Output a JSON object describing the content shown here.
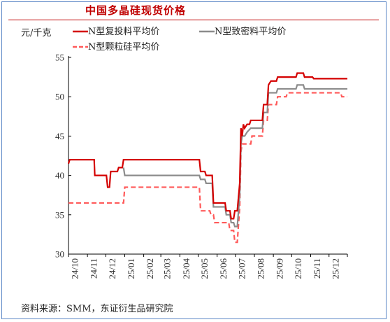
{
  "page_title": "中国多晶硅现货价格",
  "unit_label": "元/千克",
  "source": "资料来源：SMM，东证衍生品研究院",
  "colors": {
    "frame": "#5b86c6",
    "title": "#c00000",
    "series_fuhe": "#d40000",
    "series_zhimi": "#8c8c8c",
    "series_keli": "#ff5a5a"
  },
  "chart_data": {
    "type": "line",
    "title": "",
    "xlabel": "",
    "ylabel": "元/千克",
    "ylim": [
      30,
      55
    ],
    "yticks": [
      30,
      35,
      40,
      45,
      50,
      55
    ],
    "xlim": [
      "2024-10-01",
      "2025-12-31"
    ],
    "xticks": [
      {
        "date": "2024-10-01",
        "label": "24/10"
      },
      {
        "date": "2024-11-01",
        "label": "24/11"
      },
      {
        "date": "2024-12-01",
        "label": "24/12"
      },
      {
        "date": "2025-01-01",
        "label": "25/01"
      },
      {
        "date": "2025-02-01",
        "label": "25/02"
      },
      {
        "date": "2025-03-01",
        "label": "25/03"
      },
      {
        "date": "2025-04-01",
        "label": "25/04"
      },
      {
        "date": "2025-05-01",
        "label": "25/05"
      },
      {
        "date": "2025-06-01",
        "label": "25/06"
      },
      {
        "date": "2025-07-01",
        "label": "25/07"
      },
      {
        "date": "2025-08-01",
        "label": "25/08"
      },
      {
        "date": "2025-09-01",
        "label": "25/09"
      },
      {
        "date": "2025-10-01",
        "label": "25/10"
      },
      {
        "date": "2025-11-01",
        "label": "25/11"
      },
      {
        "date": "2025-12-01",
        "label": "25/12"
      }
    ],
    "grid": false,
    "legend_position": "top",
    "series": [
      {
        "name": "N型复投料平均价",
        "style": "solid",
        "color": "#d40000",
        "points": [
          [
            "2024-10-01",
            41.5
          ],
          [
            "2024-10-03",
            42
          ],
          [
            "2024-11-12",
            42
          ],
          [
            "2024-11-13",
            40
          ],
          [
            "2024-12-02",
            40
          ],
          [
            "2024-12-04",
            38.5
          ],
          [
            "2024-12-07",
            38.5
          ],
          [
            "2024-12-09",
            40.5
          ],
          [
            "2024-12-20",
            40.5
          ],
          [
            "2024-12-22",
            41
          ],
          [
            "2024-12-28",
            41
          ],
          [
            "2024-12-30",
            42
          ],
          [
            "2025-05-03",
            42
          ],
          [
            "2025-05-05",
            40.5
          ],
          [
            "2025-05-12",
            40.5
          ],
          [
            "2025-05-14",
            40
          ],
          [
            "2025-05-24",
            40
          ],
          [
            "2025-05-26",
            36.5
          ],
          [
            "2025-06-14",
            36.5
          ],
          [
            "2025-06-16",
            35.5
          ],
          [
            "2025-06-22",
            35.5
          ],
          [
            "2025-06-24",
            34.5
          ],
          [
            "2025-06-28",
            34.5
          ],
          [
            "2025-06-30",
            35.5
          ],
          [
            "2025-07-04",
            35.5
          ],
          [
            "2025-07-08",
            39
          ],
          [
            "2025-07-10",
            46
          ],
          [
            "2025-07-12",
            45
          ],
          [
            "2025-07-14",
            46.5
          ],
          [
            "2025-07-16",
            46
          ],
          [
            "2025-07-20",
            46.5
          ],
          [
            "2025-07-24",
            46.5
          ],
          [
            "2025-07-26",
            47
          ],
          [
            "2025-08-14",
            47
          ],
          [
            "2025-08-16",
            49
          ],
          [
            "2025-08-22",
            49
          ],
          [
            "2025-08-24",
            51.5
          ],
          [
            "2025-08-28",
            52
          ],
          [
            "2025-09-06",
            52
          ],
          [
            "2025-09-08",
            52.5
          ],
          [
            "2025-10-08",
            52.5
          ],
          [
            "2025-10-10",
            53
          ],
          [
            "2025-10-20",
            53
          ],
          [
            "2025-10-22",
            52.5
          ],
          [
            "2025-11-04",
            52.5
          ],
          [
            "2025-11-06",
            52.3
          ],
          [
            "2025-12-31",
            52.3
          ]
        ]
      },
      {
        "name": "N型致密料平均价",
        "style": "solid",
        "color": "#8c8c8c",
        "points": [
          [
            "2024-12-30",
            41
          ],
          [
            "2025-01-01",
            40
          ],
          [
            "2025-05-03",
            40
          ],
          [
            "2025-05-05",
            39.5
          ],
          [
            "2025-05-12",
            39.5
          ],
          [
            "2025-05-14",
            39
          ],
          [
            "2025-05-24",
            39
          ],
          [
            "2025-05-26",
            36
          ],
          [
            "2025-06-14",
            36
          ],
          [
            "2025-06-16",
            35
          ],
          [
            "2025-06-22",
            35
          ],
          [
            "2025-06-24",
            34
          ],
          [
            "2025-06-28",
            34
          ],
          [
            "2025-06-30",
            33.5
          ],
          [
            "2025-07-04",
            33.5
          ],
          [
            "2025-07-08",
            37.5
          ],
          [
            "2025-07-10",
            44
          ],
          [
            "2025-07-12",
            45
          ],
          [
            "2025-07-16",
            45
          ],
          [
            "2025-07-20",
            45.5
          ],
          [
            "2025-07-26",
            46
          ],
          [
            "2025-08-14",
            46
          ],
          [
            "2025-08-16",
            48
          ],
          [
            "2025-08-22",
            48
          ],
          [
            "2025-08-24",
            50.5
          ],
          [
            "2025-09-06",
            50.5
          ],
          [
            "2025-09-08",
            51
          ],
          [
            "2025-10-08",
            51
          ],
          [
            "2025-10-10",
            51.5
          ],
          [
            "2025-10-20",
            51.5
          ],
          [
            "2025-10-22",
            51
          ],
          [
            "2025-12-31",
            51
          ]
        ]
      },
      {
        "name": "N型颗粒硅平均价",
        "style": "dashed",
        "color": "#ff5a5a",
        "points": [
          [
            "2024-10-01",
            36.5
          ],
          [
            "2024-12-30",
            36.5
          ],
          [
            "2025-01-01",
            38.5
          ],
          [
            "2025-05-03",
            38.5
          ],
          [
            "2025-05-05",
            35.5
          ],
          [
            "2025-05-20",
            35.5
          ],
          [
            "2025-05-22",
            35
          ],
          [
            "2025-05-26",
            35
          ],
          [
            "2025-05-28",
            34
          ],
          [
            "2025-06-20",
            34
          ],
          [
            "2025-06-22",
            33
          ],
          [
            "2025-06-28",
            33
          ],
          [
            "2025-06-30",
            31.5
          ],
          [
            "2025-07-04",
            31.5
          ],
          [
            "2025-07-08",
            36
          ],
          [
            "2025-07-10",
            43
          ],
          [
            "2025-07-12",
            44
          ],
          [
            "2025-07-26",
            44
          ],
          [
            "2025-07-28",
            45
          ],
          [
            "2025-08-14",
            45
          ],
          [
            "2025-08-16",
            47
          ],
          [
            "2025-08-22",
            47
          ],
          [
            "2025-08-24",
            49
          ],
          [
            "2025-09-06",
            49
          ],
          [
            "2025-09-08",
            50
          ],
          [
            "2025-09-22",
            50
          ],
          [
            "2025-09-24",
            50.5
          ],
          [
            "2025-12-20",
            50.5
          ],
          [
            "2025-12-22",
            50
          ],
          [
            "2025-12-31",
            50
          ]
        ]
      }
    ]
  }
}
